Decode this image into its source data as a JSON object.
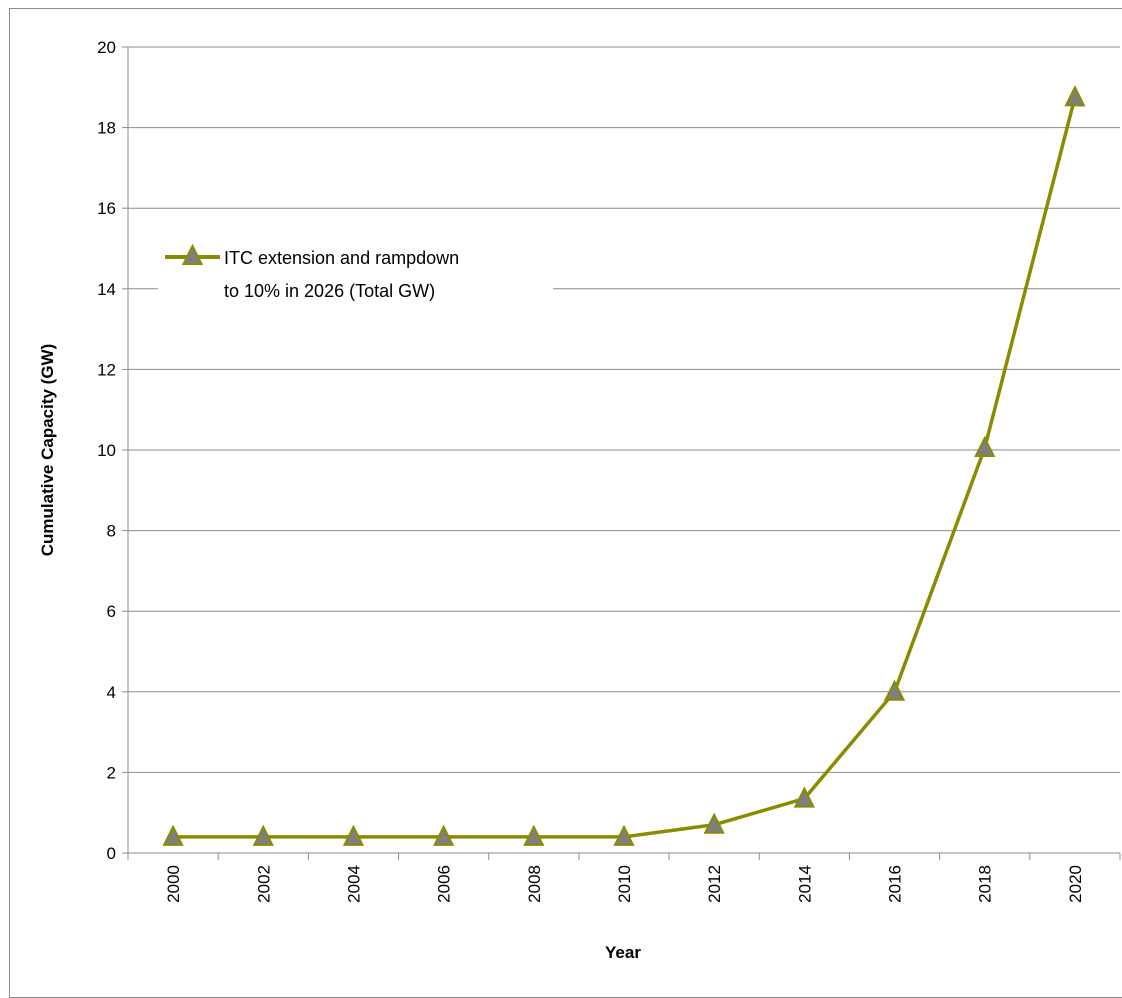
{
  "chart_data": {
    "type": "line",
    "title": "",
    "xlabel": "Year",
    "ylabel": "Cumulative Capacity (GW)",
    "categories": [
      "2000",
      "2002",
      "2004",
      "2006",
      "2008",
      "2010",
      "2012",
      "2014",
      "2016",
      "2018",
      "2020"
    ],
    "series": [
      {
        "name": "ITC extension and rampdown to 10% in 2026 (Total GW)",
        "values": [
          0.4,
          0.4,
          0.4,
          0.4,
          0.4,
          0.4,
          0.7,
          1.35,
          4.0,
          10.05,
          18.75
        ],
        "color": "#8b8b00",
        "marker": "triangle",
        "marker_fill": "#7f7f7f"
      }
    ],
    "yticks": [
      "0",
      "2",
      "4",
      "6",
      "8",
      "10",
      "12",
      "14",
      "16",
      "18",
      "20"
    ],
    "ylim": [
      0,
      20
    ],
    "grid": "horizontal",
    "legend": {
      "position": "upper-left",
      "lines": [
        "ITC extension and rampdown",
        "to 10% in 2026 (Total GW)"
      ]
    }
  }
}
